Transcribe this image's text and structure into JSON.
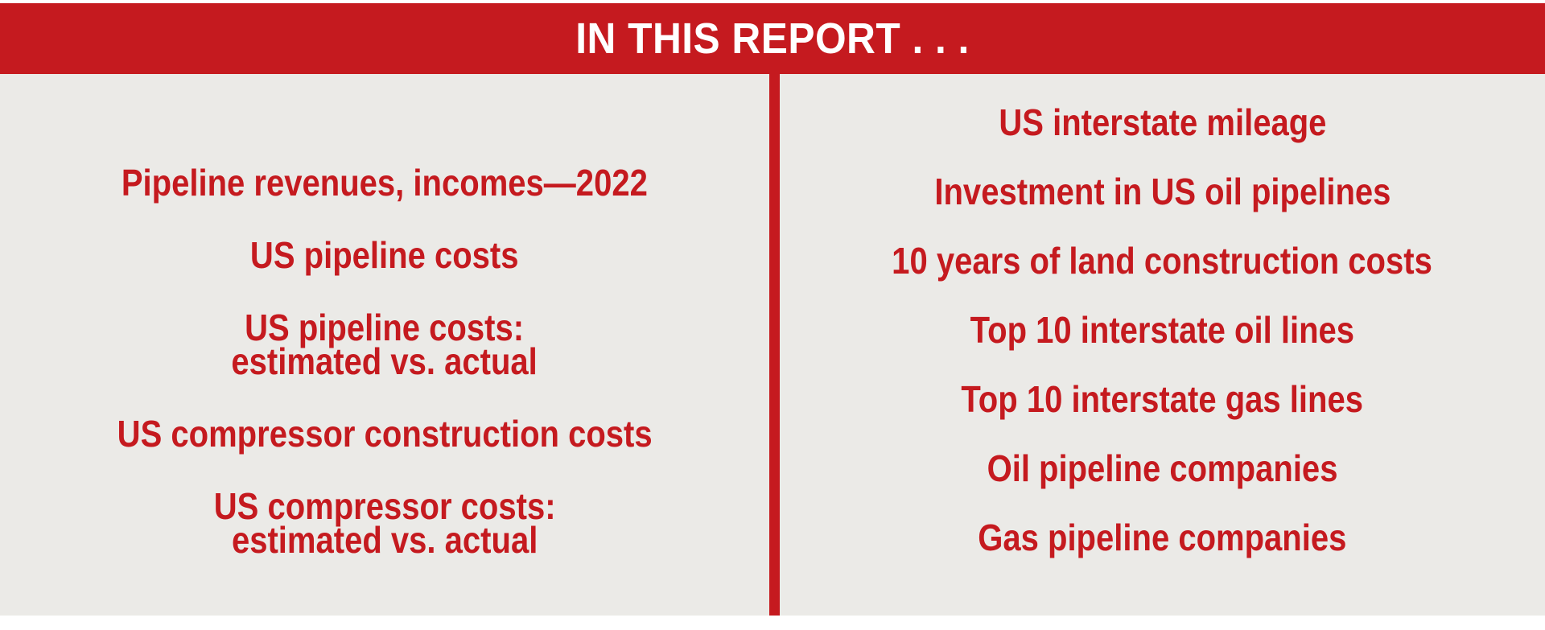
{
  "header": {
    "title": "IN THIS REPORT . . ."
  },
  "colors": {
    "accent_red": "#c51a1f",
    "panel_gray": "#ebeae7",
    "header_text_white": "#ffffff"
  },
  "columns": {
    "left": {
      "items": [
        "Pipeline revenues, incomes—2022",
        "US pipeline costs",
        "US pipeline costs:\nestimated vs. actual",
        "US compressor construction costs",
        "US compressor costs:\nestimated vs. actual"
      ]
    },
    "right": {
      "items": [
        "US interstate mileage",
        "Investment in US oil pipelines",
        "10 years of land construction costs",
        "Top 10 interstate oil lines",
        "Top 10 interstate gas lines",
        "Oil pipeline companies",
        "Gas pipeline companies"
      ]
    }
  }
}
